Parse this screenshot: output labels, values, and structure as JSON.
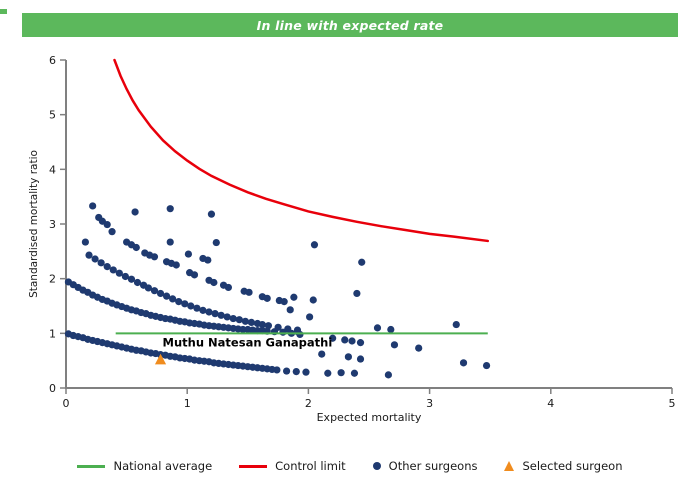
{
  "header": {
    "title": "In line with expected rate"
  },
  "colors": {
    "header_bg": "#5CB85C",
    "national_average": "#4CAF50",
    "control_limit": "#E8000B",
    "points": "#1F3A70",
    "selected": "#F08C1E",
    "axis": "#808080",
    "text": "#1A1A1A"
  },
  "chart_data": {
    "type": "scatter",
    "title": "",
    "xlabel": "Expected mortality",
    "ylabel": "Standardised mortality ratio",
    "xlim": [
      0,
      5
    ],
    "ylim": [
      0,
      6
    ],
    "xticks": [
      0,
      1,
      2,
      3,
      4,
      5
    ],
    "yticks": [
      0,
      1,
      2,
      3,
      4,
      5,
      6
    ],
    "grid": false,
    "legend_position": "bottom",
    "national_average_line": {
      "y": 1,
      "x_start": 0.41,
      "x_end": 3.48
    },
    "control_limit_curve": {
      "points": [
        [
          0.4,
          6.0
        ],
        [
          0.45,
          5.71
        ],
        [
          0.5,
          5.47
        ],
        [
          0.55,
          5.26
        ],
        [
          0.6,
          5.08
        ],
        [
          0.7,
          4.78
        ],
        [
          0.8,
          4.53
        ],
        [
          0.9,
          4.33
        ],
        [
          1.0,
          4.16
        ],
        [
          1.1,
          4.01
        ],
        [
          1.2,
          3.88
        ],
        [
          1.35,
          3.72
        ],
        [
          1.5,
          3.58
        ],
        [
          1.65,
          3.46
        ],
        [
          1.8,
          3.36
        ],
        [
          2.0,
          3.23
        ],
        [
          2.2,
          3.13
        ],
        [
          2.4,
          3.04
        ],
        [
          2.6,
          2.96
        ],
        [
          2.8,
          2.89
        ],
        [
          3.0,
          2.82
        ],
        [
          3.2,
          2.77
        ],
        [
          3.48,
          2.69
        ]
      ]
    },
    "other_surgeons": {
      "bands": [
        [
          [
            0.02,
            0.99
          ],
          [
            0.06,
            0.96
          ],
          [
            0.1,
            0.94
          ],
          [
            0.14,
            0.92
          ],
          [
            0.18,
            0.89
          ],
          [
            0.22,
            0.87
          ],
          [
            0.26,
            0.85
          ],
          [
            0.3,
            0.83
          ],
          [
            0.34,
            0.81
          ],
          [
            0.38,
            0.79
          ],
          [
            0.42,
            0.77
          ],
          [
            0.46,
            0.75
          ],
          [
            0.5,
            0.73
          ],
          [
            0.54,
            0.71
          ],
          [
            0.58,
            0.69
          ],
          [
            0.62,
            0.68
          ],
          [
            0.66,
            0.66
          ],
          [
            0.7,
            0.64
          ],
          [
            0.74,
            0.63
          ],
          [
            0.78,
            0.61
          ],
          [
            0.82,
            0.6
          ],
          [
            0.86,
            0.58
          ],
          [
            0.9,
            0.57
          ],
          [
            0.94,
            0.55
          ],
          [
            0.98,
            0.54
          ],
          [
            1.02,
            0.53
          ],
          [
            1.06,
            0.51
          ],
          [
            1.1,
            0.5
          ],
          [
            1.14,
            0.49
          ],
          [
            1.18,
            0.48
          ],
          [
            1.22,
            0.46
          ],
          [
            1.26,
            0.45
          ],
          [
            1.3,
            0.44
          ],
          [
            1.34,
            0.43
          ],
          [
            1.38,
            0.42
          ],
          [
            1.42,
            0.41
          ],
          [
            1.46,
            0.4
          ],
          [
            1.5,
            0.39
          ],
          [
            1.54,
            0.38
          ],
          [
            1.58,
            0.37
          ],
          [
            1.62,
            0.36
          ],
          [
            1.66,
            0.35
          ],
          [
            1.7,
            0.34
          ],
          [
            1.74,
            0.33
          ],
          [
            1.82,
            0.31
          ],
          [
            1.9,
            0.3
          ],
          [
            1.98,
            0.29
          ]
        ],
        [
          [
            0.02,
            1.94
          ],
          [
            0.06,
            1.89
          ],
          [
            0.1,
            1.84
          ],
          [
            0.14,
            1.79
          ],
          [
            0.18,
            1.75
          ],
          [
            0.22,
            1.7
          ],
          [
            0.26,
            1.66
          ],
          [
            0.3,
            1.62
          ],
          [
            0.34,
            1.59
          ],
          [
            0.38,
            1.55
          ],
          [
            0.42,
            1.52
          ],
          [
            0.46,
            1.49
          ],
          [
            0.5,
            1.46
          ],
          [
            0.54,
            1.43
          ],
          [
            0.58,
            1.41
          ],
          [
            0.62,
            1.38
          ],
          [
            0.66,
            1.36
          ],
          [
            0.7,
            1.33
          ],
          [
            0.74,
            1.31
          ],
          [
            0.78,
            1.29
          ],
          [
            0.82,
            1.27
          ],
          [
            0.86,
            1.26
          ],
          [
            0.9,
            1.24
          ],
          [
            0.94,
            1.22
          ],
          [
            0.98,
            1.21
          ],
          [
            1.02,
            1.19
          ],
          [
            1.06,
            1.18
          ],
          [
            1.1,
            1.17
          ],
          [
            1.14,
            1.15
          ],
          [
            1.18,
            1.14
          ],
          [
            1.22,
            1.13
          ],
          [
            1.26,
            1.12
          ],
          [
            1.3,
            1.11
          ],
          [
            1.34,
            1.1
          ],
          [
            1.38,
            1.09
          ],
          [
            1.42,
            1.08
          ],
          [
            1.46,
            1.07
          ],
          [
            1.5,
            1.07
          ],
          [
            1.54,
            1.06
          ],
          [
            1.58,
            1.05
          ],
          [
            1.62,
            1.05
          ],
          [
            1.66,
            1.04
          ],
          [
            1.72,
            1.03
          ],
          [
            1.79,
            1.02
          ],
          [
            1.86,
            1.0
          ],
          [
            1.93,
            0.98
          ]
        ],
        [
          [
            0.19,
            2.43
          ],
          [
            0.24,
            2.36
          ],
          [
            0.29,
            2.29
          ],
          [
            0.34,
            2.22
          ],
          [
            0.39,
            2.16
          ],
          [
            0.44,
            2.1
          ],
          [
            0.49,
            2.04
          ],
          [
            0.54,
            1.99
          ],
          [
            0.59,
            1.93
          ],
          [
            0.64,
            1.88
          ],
          [
            0.68,
            1.83
          ],
          [
            0.73,
            1.78
          ],
          [
            0.78,
            1.73
          ],
          [
            0.83,
            1.68
          ],
          [
            0.88,
            1.63
          ],
          [
            0.93,
            1.58
          ],
          [
            0.98,
            1.54
          ],
          [
            1.03,
            1.5
          ],
          [
            1.08,
            1.46
          ],
          [
            1.13,
            1.42
          ],
          [
            1.18,
            1.39
          ],
          [
            1.23,
            1.36
          ],
          [
            1.28,
            1.33
          ],
          [
            1.33,
            1.3
          ],
          [
            1.38,
            1.27
          ],
          [
            1.43,
            1.25
          ],
          [
            1.48,
            1.22
          ],
          [
            1.53,
            1.2
          ],
          [
            1.58,
            1.18
          ],
          [
            1.62,
            1.16
          ],
          [
            1.67,
            1.14
          ],
          [
            1.75,
            1.11
          ],
          [
            1.83,
            1.08
          ],
          [
            1.91,
            1.06
          ]
        ],
        [
          [
            0.5,
            2.67
          ],
          [
            0.54,
            2.62
          ],
          [
            0.58,
            2.57
          ],
          [
            0.65,
            2.47
          ],
          [
            0.69,
            2.43
          ],
          [
            0.73,
            2.4
          ],
          [
            0.83,
            2.31
          ],
          [
            0.87,
            2.28
          ],
          [
            0.91,
            2.25
          ],
          [
            1.02,
            2.11
          ],
          [
            1.06,
            2.07
          ],
          [
            1.18,
            1.97
          ],
          [
            1.22,
            1.93
          ],
          [
            1.3,
            1.88
          ],
          [
            1.34,
            1.84
          ],
          [
            1.47,
            1.77
          ],
          [
            1.51,
            1.75
          ],
          [
            1.62,
            1.67
          ],
          [
            1.66,
            1.64
          ],
          [
            1.76,
            1.6
          ],
          [
            1.8,
            1.58
          ]
        ],
        [
          [
            0.27,
            3.12
          ],
          [
            0.3,
            3.05
          ],
          [
            0.34,
            2.99
          ],
          [
            0.38,
            2.86
          ]
        ]
      ],
      "singles": [
        [
          0.22,
          3.33
        ],
        [
          0.57,
          3.22
        ],
        [
          0.86,
          3.28
        ],
        [
          1.2,
          3.18
        ],
        [
          0.16,
          2.67
        ],
        [
          0.86,
          2.67
        ],
        [
          1.24,
          2.66
        ],
        [
          2.05,
          2.62
        ],
        [
          1.01,
          2.45
        ],
        [
          1.13,
          2.37
        ],
        [
          1.17,
          2.34
        ],
        [
          2.44,
          2.3
        ],
        [
          2.4,
          1.73
        ],
        [
          1.88,
          1.66
        ],
        [
          2.04,
          1.61
        ],
        [
          1.85,
          1.43
        ],
        [
          2.01,
          1.3
        ],
        [
          2.57,
          1.1
        ],
        [
          2.68,
          1.07
        ],
        [
          3.22,
          1.16
        ],
        [
          1.91,
          1.03
        ],
        [
          2.2,
          0.91
        ],
        [
          2.3,
          0.88
        ],
        [
          2.36,
          0.86
        ],
        [
          2.43,
          0.83
        ],
        [
          2.71,
          0.79
        ],
        [
          2.91,
          0.73
        ],
        [
          2.11,
          0.62
        ],
        [
          2.33,
          0.57
        ],
        [
          2.43,
          0.53
        ],
        [
          3.28,
          0.46
        ],
        [
          3.47,
          0.41
        ],
        [
          2.16,
          0.27
        ],
        [
          2.27,
          0.28
        ],
        [
          2.38,
          0.27
        ],
        [
          2.66,
          0.24
        ]
      ]
    },
    "selected_surgeon": {
      "x": 0.78,
      "y": 0.52,
      "label": "Muthu Natesan Ganapathi"
    }
  },
  "legend": {
    "items": [
      {
        "label": "National average",
        "marker": "line",
        "color": "#4CAF50"
      },
      {
        "label": "Control limit",
        "marker": "line",
        "color": "#E8000B"
      },
      {
        "label": "Other surgeons",
        "marker": "dot",
        "color": "#1F3A70"
      },
      {
        "label": "Selected surgeon",
        "marker": "triangle",
        "color": "#F08C1E"
      }
    ]
  }
}
